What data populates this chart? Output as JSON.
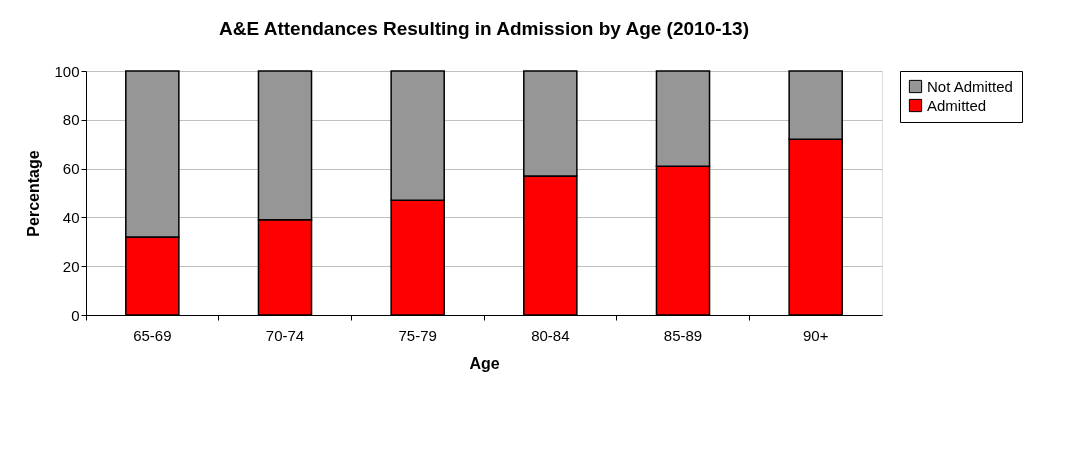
{
  "chart_data": {
    "type": "bar",
    "title": "A&E Attendances Resulting in Admission by Age (2010-13)",
    "xlabel": "Age",
    "ylabel": "Percentage",
    "categories": [
      "65-69",
      "70-74",
      "75-79",
      "80-84",
      "85-89",
      "90+"
    ],
    "series": [
      {
        "name": "Admitted",
        "color": "#ff0000",
        "values": [
          32,
          39,
          47,
          57,
          61,
          72
        ]
      },
      {
        "name": "Not Admitted",
        "color": "#969696",
        "values": [
          68,
          61,
          53,
          43,
          39,
          28
        ]
      }
    ],
    "stacked": true,
    "ylim": [
      0,
      100
    ],
    "yticks": [
      0,
      20,
      40,
      60,
      80,
      100
    ],
    "grid": "y",
    "legend": "right"
  }
}
